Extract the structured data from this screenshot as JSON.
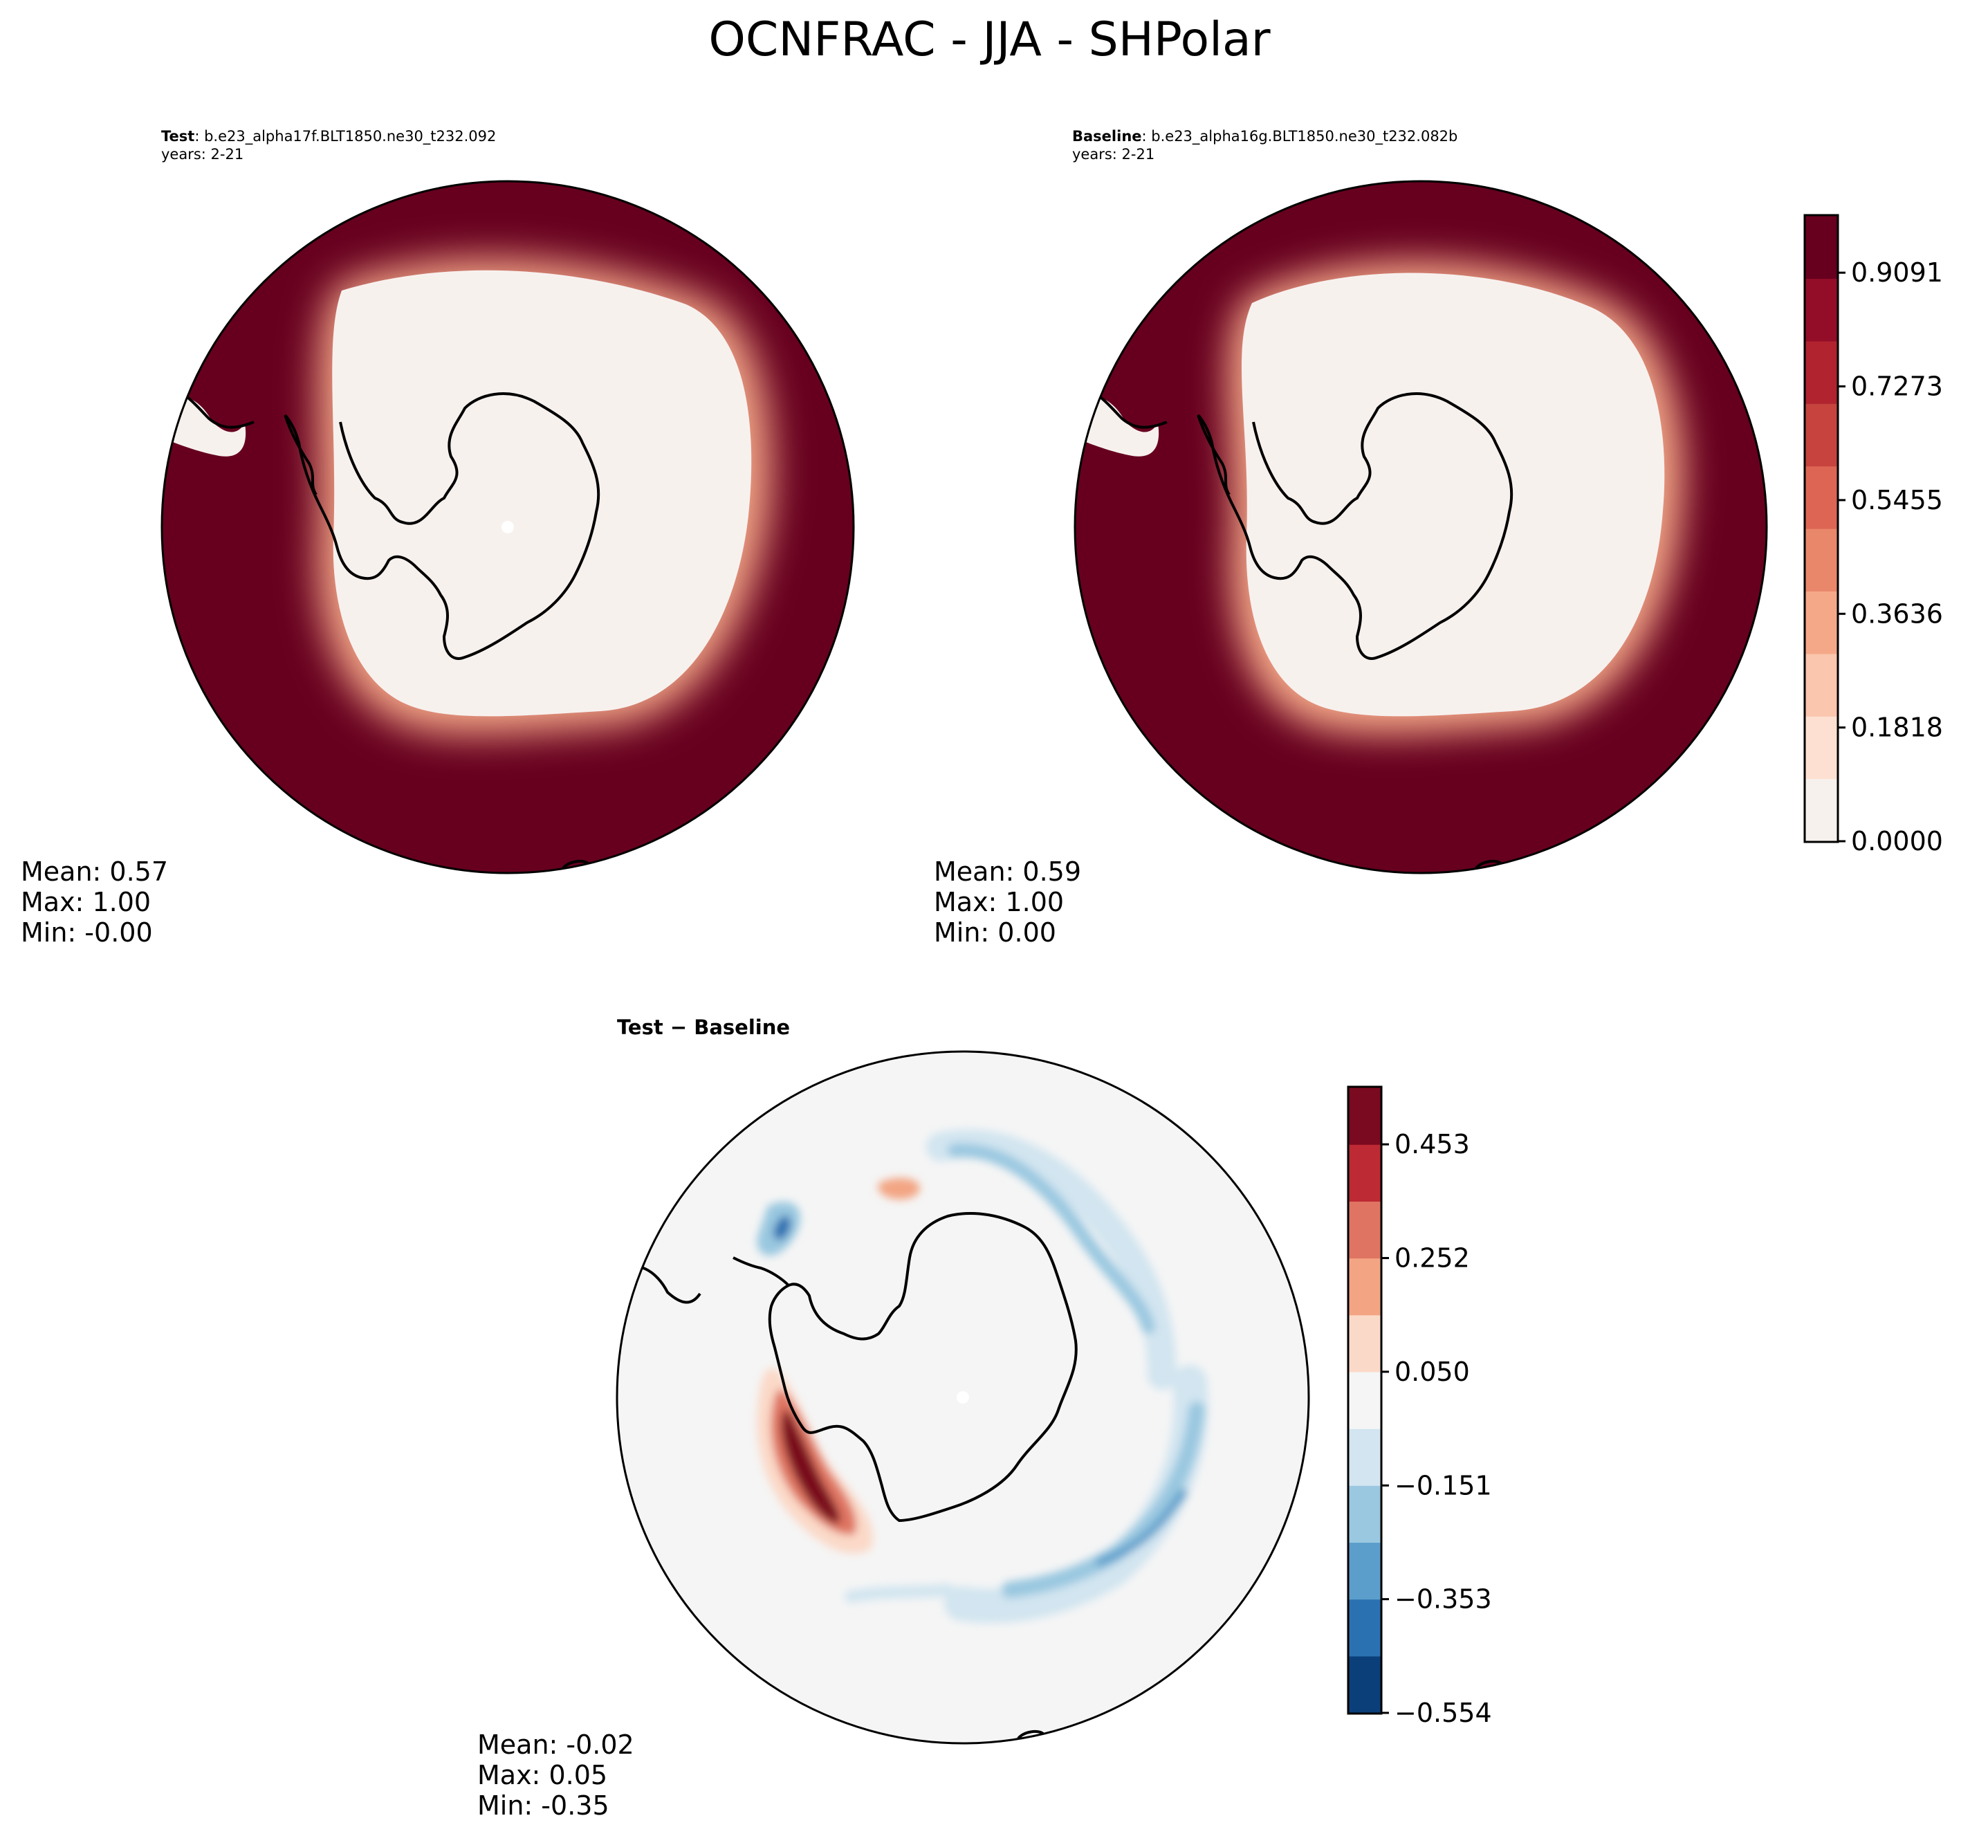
{
  "colors": {
    "ocean": "#67001f",
    "ice": "#f7f1ee",
    "diff_background": "#f5f5f5",
    "seq_scale": [
      "#f7f1ee",
      "#fde0d2",
      "#fac6ad",
      "#f5a888",
      "#e9876b",
      "#dc6653",
      "#c6443d",
      "#b0232f",
      "#930d28",
      "#67001f"
    ],
    "div_scale": [
      "#0b3f7a",
      "#2a71b1",
      "#5b9ecb",
      "#9ac8e0",
      "#d2e5f0",
      "#f5f5f5",
      "#fbd9c8",
      "#f3a583",
      "#df7462",
      "#bd2a33",
      "#790a1f"
    ]
  },
  "chart_data": [
    {
      "type": "heatmap",
      "figure_title": "OCNFRAC - JJA - SHPolar",
      "panel": "test",
      "label": "Test",
      "case": ": b.e23_alpha17f.BLT1850.ne30_t232.092",
      "years": "years: 2-21",
      "stats": {
        "mean": "Mean:  0.57",
        "max": "Max:  1.00",
        "min": "Min: -0.00"
      }
    },
    {
      "type": "heatmap",
      "panel": "baseline",
      "label": "Baseline",
      "case": ": b.e23_alpha16g.BLT1850.ne30_t232.082b",
      "years": "years: 2-21",
      "stats": {
        "mean": "Mean:  0.59",
        "max": "Max:  1.00",
        "min": "Min:  0.00"
      },
      "colorbar": {
        "range": [
          0.0,
          1.0
        ],
        "ticks": [
          "0.9091",
          "0.7273",
          "0.5455",
          "0.3636",
          "0.1818",
          "0.0000"
        ]
      }
    },
    {
      "type": "heatmap",
      "panel": "difference",
      "label": "Test − Baseline",
      "stats": {
        "mean": "Mean: -0.02",
        "max": "Max:  0.05",
        "min": "Min: -0.35"
      },
      "colorbar": {
        "range": [
          -0.554,
          0.554
        ],
        "ticks": [
          "0.453",
          "0.252",
          "0.050",
          "−0.151",
          "−0.353",
          "−0.554"
        ]
      }
    }
  ]
}
